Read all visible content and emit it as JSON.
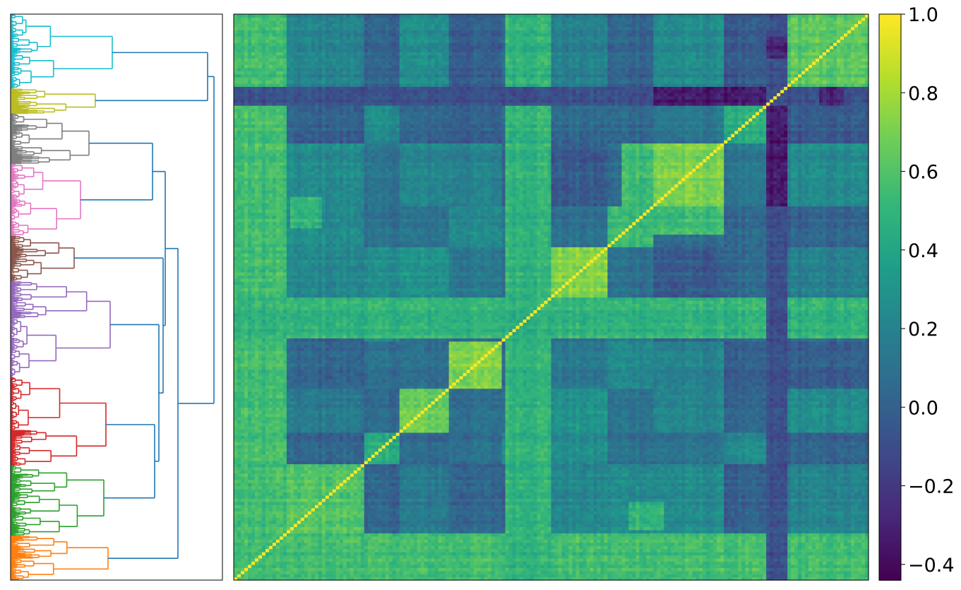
{
  "figure": {
    "background": "#ffffff"
  },
  "chart_data": [
    {
      "type": "dendrogram",
      "orientation": "left",
      "link_color_default": "#1f77b4",
      "clusters": [
        {
          "id": "cyan",
          "color": "#17becf",
          "leaf_range": [
            0.0,
            0.132
          ],
          "height": 0.48
        },
        {
          "id": "olive",
          "color": "#bcbd22",
          "leaf_range": [
            0.132,
            0.176
          ],
          "height": 0.4
        },
        {
          "id": "gray",
          "color": "#7f7f7f",
          "leaf_range": [
            0.176,
            0.265
          ],
          "height": 0.37
        },
        {
          "id": "pink",
          "color": "#e377c2",
          "leaf_range": [
            0.265,
            0.392
          ],
          "height": 0.33
        },
        {
          "id": "brown",
          "color": "#8c564b",
          "leaf_range": [
            0.392,
            0.472
          ],
          "height": 0.3
        },
        {
          "id": "purple",
          "color": "#9467bd",
          "leaf_range": [
            0.472,
            0.642
          ],
          "height": 0.47
        },
        {
          "id": "red",
          "color": "#d62728",
          "leaf_range": [
            0.642,
            0.798
          ],
          "height": 0.45
        },
        {
          "id": "green",
          "color": "#2ca02c",
          "leaf_range": [
            0.798,
            0.922
          ],
          "height": 0.44
        },
        {
          "id": "orange",
          "color": "#ff7f0e",
          "leaf_range": [
            0.922,
            1.0
          ],
          "height": 0.46
        }
      ],
      "links": [
        {
          "a": "olive",
          "b": "cyan",
          "height": 0.93
        },
        {
          "a": "gray",
          "b": "pink",
          "height": 0.67
        },
        {
          "a": "red",
          "b": "green",
          "height": 0.68
        },
        {
          "a": "purple",
          "b": "red+green",
          "height": 0.7
        },
        {
          "a": "brown",
          "b": "purple+red+green",
          "height": 0.72
        },
        {
          "a": "gray+pink",
          "b": "brown+purple+red+green",
          "height": 0.73
        },
        {
          "a": "orange",
          "b": "gray..green",
          "height": 0.79
        },
        {
          "a": "cyan+olive",
          "b": "rest",
          "height": 0.96
        }
      ]
    },
    {
      "type": "heatmap",
      "colormap": "viridis",
      "vmin": -0.44,
      "vmax": 1.0,
      "n": 180,
      "diagonal_value": 1.0,
      "title": "",
      "xlabel": "",
      "ylabel": "",
      "blocks": [
        {
          "start": 0.0,
          "end": 0.082,
          "within": 0.55
        },
        {
          "start": 0.082,
          "end": 0.205,
          "within": 0.6
        },
        {
          "start": 0.205,
          "end": 0.26,
          "within": 0.42
        },
        {
          "start": 0.26,
          "end": 0.34,
          "within": 0.66
        },
        {
          "start": 0.34,
          "end": 0.42,
          "within": 0.72
        },
        {
          "start": 0.42,
          "end": 0.5,
          "within": 0.45
        },
        {
          "start": 0.5,
          "end": 0.59,
          "within": 0.72
        },
        {
          "start": 0.59,
          "end": 0.66,
          "within": 0.55
        },
        {
          "start": 0.66,
          "end": 0.77,
          "within": 0.7
        },
        {
          "start": 0.77,
          "end": 0.84,
          "within": 0.45
        },
        {
          "start": 0.84,
          "end": 0.87,
          "within": 0.75
        },
        {
          "start": 0.87,
          "end": 1.0,
          "within": 0.62
        }
      ],
      "cross_blocks": [
        {
          "a": [
            0.0,
            0.082
          ],
          "b": [
            0.0,
            0.082
          ],
          "value": 0.55
        },
        {
          "a": [
            0.61,
            0.66
          ],
          "b": [
            0.66,
            0.77
          ],
          "value": 0.55
        },
        {
          "a": [
            0.43,
            0.5
          ],
          "b": [
            0.43,
            0.5
          ],
          "value": 0.5
        },
        {
          "a": [
            0.84,
            0.87
          ],
          "b": [
            0.0,
            1.0
          ],
          "value": -0.1
        },
        {
          "a": [
            0.84,
            0.87
          ],
          "b": [
            0.66,
            0.84
          ],
          "value": -0.35
        },
        {
          "a": [
            0.84,
            0.87
          ],
          "b": [
            0.92,
            0.96
          ],
          "value": -0.3
        },
        {
          "a": [
            0.62,
            0.68
          ],
          "b": [
            0.09,
            0.14
          ],
          "value": 0.5
        },
        {
          "a": [
            0.18,
            0.2
          ],
          "b": [
            0.06,
            0.08
          ],
          "value": 0.6
        }
      ]
    },
    {
      "type": "colorbar",
      "colormap": "viridis",
      "ylim": [
        -0.44,
        1.0
      ],
      "ticks": [
        1.0,
        0.8,
        0.6,
        0.4,
        0.2,
        0.0,
        -0.2,
        -0.4
      ],
      "tick_labels": [
        "1.0",
        "0.8",
        "0.6",
        "0.4",
        "0.2",
        "0.0",
        "−0.2",
        "−0.4"
      ]
    }
  ]
}
